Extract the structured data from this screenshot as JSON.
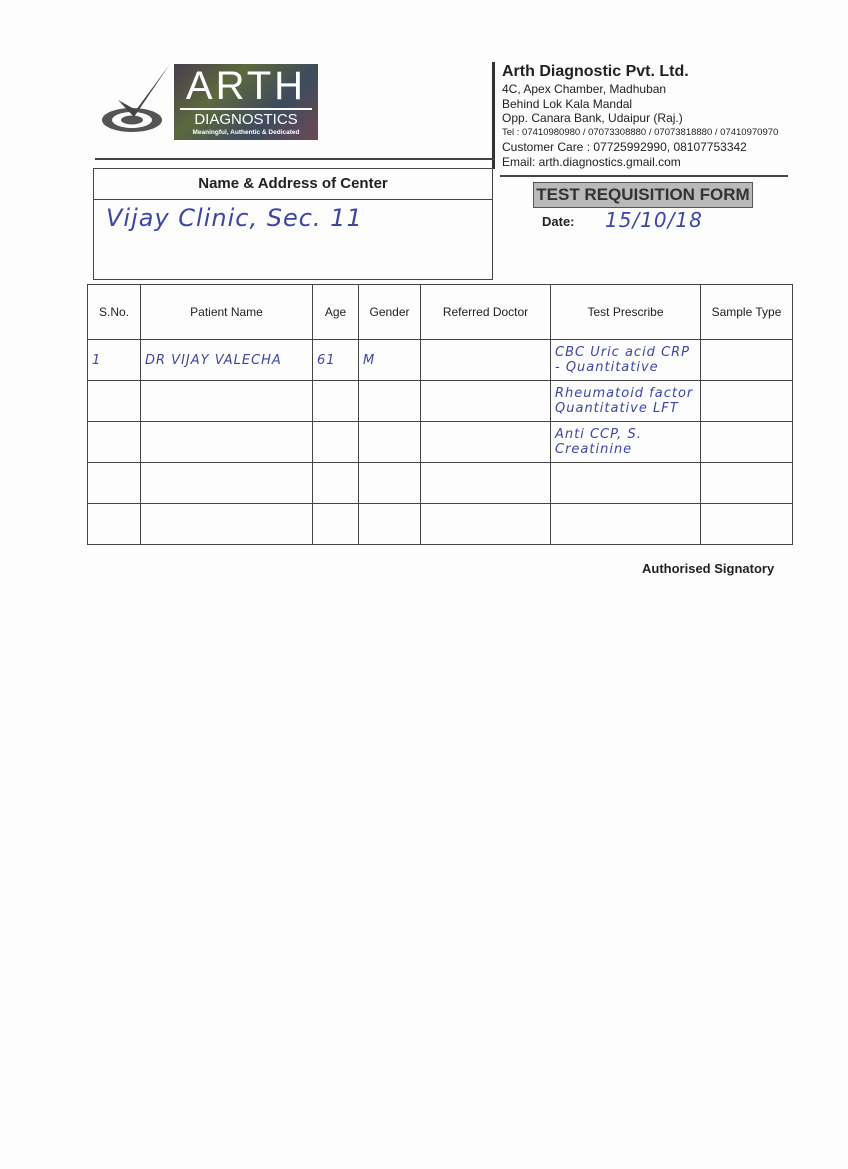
{
  "logo": {
    "name": "ARTH",
    "sub": "DIAGNOSTICS",
    "tagline": "Meaningful, Authentic & Dedicated"
  },
  "company": {
    "name": "Arth Diagnostic Pvt. Ltd.",
    "address": [
      "4C, Apex Chamber, Madhuban",
      "Behind Lok Kala Mandal",
      "Opp. Canara Bank, Udaipur (Raj.)"
    ],
    "tel": "Tel : 07410980980 / 07073308880 / 07073818880 / 07410970970",
    "customer_care": "Customer Care : 07725992990, 08107753342",
    "email": "Email: arth.diagnostics.gmail.com"
  },
  "center": {
    "label": "Name & Address of Center",
    "value": "Vijay Clinic, Sec. 11"
  },
  "form_title": "TEST REQUISITION FORM",
  "date": {
    "label": "Date:",
    "value": "15/10/18"
  },
  "table": {
    "headers": [
      "S.No.",
      "Patient Name",
      "Age",
      "Gender",
      "Referred Doctor",
      "Test Prescribe",
      "Sample Type"
    ],
    "rows": [
      {
        "sno": "1",
        "name": "DR VIJAY VALECHA",
        "age": "61",
        "gender": "M",
        "doctor": "",
        "test": "CBC Uric acid CRP - Quantitative",
        "sample": ""
      },
      {
        "sno": "",
        "name": "",
        "age": "",
        "gender": "",
        "doctor": "",
        "test": "Rheumatoid factor Quantitative LFT",
        "sample": ""
      },
      {
        "sno": "",
        "name": "",
        "age": "",
        "gender": "",
        "doctor": "",
        "test": "Anti CCP, S. Creatinine",
        "sample": ""
      },
      {
        "sno": "",
        "name": "",
        "age": "",
        "gender": "",
        "doctor": "",
        "test": "",
        "sample": ""
      },
      {
        "sno": "",
        "name": "",
        "age": "",
        "gender": "",
        "doctor": "",
        "test": "",
        "sample": ""
      }
    ]
  },
  "signatory": "Authorised Signatory"
}
